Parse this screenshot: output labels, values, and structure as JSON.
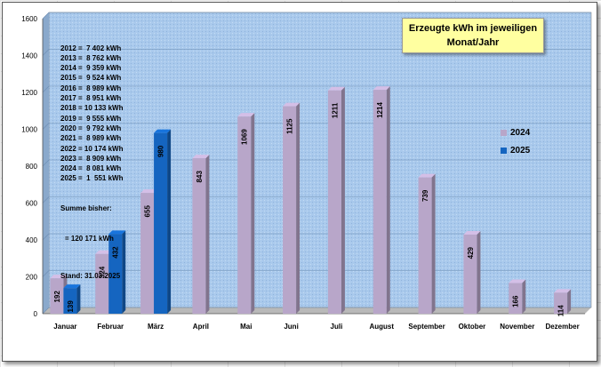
{
  "chart_data": {
    "type": "bar",
    "title": "Erzeugte kWh im jeweiligen Monat/Jahr",
    "title_lines": [
      "Erzeugte kWh im jeweiligen",
      "Monat/Jahr"
    ],
    "categories": [
      "Januar",
      "Februar",
      "März",
      "April",
      "Mai",
      "Juni",
      "Juli",
      "August",
      "September",
      "Oktober",
      "November",
      "Dezember"
    ],
    "series": [
      {
        "name": "2024",
        "color": "#b8a6c9",
        "values": [
          192,
          324,
          655,
          843,
          1069,
          1125,
          1211,
          1214,
          739,
          429,
          166,
          114
        ]
      },
      {
        "name": "2025",
        "color": "#1565c0",
        "values": [
          139,
          432,
          980,
          null,
          null,
          null,
          null,
          null,
          null,
          null,
          null,
          null
        ]
      }
    ],
    "ylim": [
      0,
      1600
    ],
    "yticks": [
      0,
      200,
      400,
      600,
      800,
      1000,
      1200,
      1400,
      1600
    ],
    "grid": true,
    "legend_position": "right",
    "plot_background": "#a9c9ec",
    "annotations": {
      "yearly_totals": [
        "2012 =  7 402 kWh",
        "2013 =  8 762 kWh",
        "2014 =  9 359 kWh",
        "2015 =  9 524 kWh",
        "2016 =  8 989 kWh",
        "2017 =  8 951 kWh",
        "2018 = 10 133 kWh",
        "2019 =  9 555 kWh",
        "2020 =  9 792 kWh",
        "2021 =  8 989 kWh",
        "2022 = 10 174 kWh",
        "2023 =  8 909 kWh",
        "2024 =  8 081 kWh",
        "2025 =  1  551 kWh"
      ],
      "summe_label": "Summe bisher:",
      "summe_value": "= 120 171 kWh",
      "stand": "Stand: 31.03.2025"
    }
  }
}
